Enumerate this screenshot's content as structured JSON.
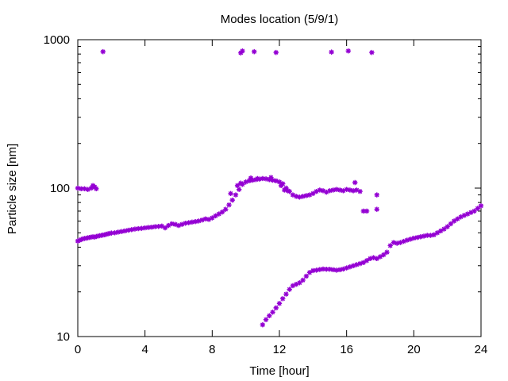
{
  "chart_data": {
    "type": "scatter",
    "title": "Modes location (5/9/1)",
    "xlabel": "Time [hour]",
    "ylabel": "Particle size [nm]",
    "xlim": [
      0,
      24
    ],
    "ylim": [
      10,
      1000
    ],
    "yscale": "log",
    "xticks": [
      0,
      4,
      8,
      12,
      16,
      20,
      24
    ],
    "xtick_labels": [
      "0",
      "4",
      "8",
      "12",
      "16",
      "20",
      "24"
    ],
    "yticks": [
      10,
      100,
      1000
    ],
    "ytick_labels": [
      "10",
      "100",
      "1000"
    ],
    "grid": false,
    "legend": "none",
    "marker": "asterisk",
    "color": "#9400d3",
    "series": [
      {
        "points": [
          [
            0.0,
            44.0
          ],
          [
            0.1,
            44.5
          ],
          [
            0.2,
            45.0
          ],
          [
            0.3,
            45.5
          ],
          [
            0.4,
            45.8
          ],
          [
            0.5,
            46.0
          ],
          [
            0.6,
            46.3
          ],
          [
            0.7,
            46.5
          ],
          [
            0.8,
            46.8
          ],
          [
            0.9,
            47.0
          ],
          [
            1.0,
            46.8
          ],
          [
            1.1,
            47.2
          ],
          [
            1.2,
            47.5
          ],
          [
            1.3,
            47.8
          ],
          [
            1.4,
            48.0
          ],
          [
            1.5,
            48.3
          ],
          [
            1.6,
            48.5
          ],
          [
            1.7,
            48.9
          ],
          [
            1.8,
            49.2
          ],
          [
            1.9,
            49.5
          ],
          [
            2.0,
            49.8
          ],
          [
            2.2,
            50.0
          ],
          [
            2.4,
            50.5
          ],
          [
            2.6,
            51.0
          ],
          [
            2.8,
            51.5
          ],
          [
            3.0,
            52.0
          ],
          [
            3.2,
            52.5
          ],
          [
            3.4,
            53.0
          ],
          [
            3.6,
            53.3
          ],
          [
            3.8,
            53.6
          ],
          [
            4.0,
            54.0
          ],
          [
            4.2,
            54.3
          ],
          [
            4.4,
            54.6
          ],
          [
            4.6,
            55.0
          ],
          [
            4.8,
            55.2
          ],
          [
            5.0,
            55.5
          ],
          [
            5.2,
            54.0
          ],
          [
            5.4,
            56.0
          ],
          [
            5.6,
            57.5
          ],
          [
            5.8,
            57.0
          ],
          [
            6.0,
            56.0
          ],
          [
            6.2,
            57.0
          ],
          [
            6.4,
            58.0
          ],
          [
            6.6,
            58.5
          ],
          [
            6.8,
            59.0
          ],
          [
            7.0,
            59.5
          ],
          [
            7.2,
            60.0
          ],
          [
            7.4,
            61.0
          ],
          [
            7.6,
            62.0
          ],
          [
            7.8,
            61.5
          ],
          [
            8.0,
            63.0
          ],
          [
            8.2,
            65.0
          ],
          [
            8.4,
            67.0
          ],
          [
            8.6,
            69.0
          ],
          [
            8.8,
            72.0
          ],
          [
            9.0,
            77.0
          ],
          [
            9.2,
            83.0
          ],
          [
            9.4,
            90.0
          ],
          [
            9.6,
            98.0
          ],
          [
            9.8,
            106.0
          ],
          [
            10.0,
            110.0
          ],
          [
            10.2,
            112.0
          ],
          [
            10.4,
            113.0
          ],
          [
            10.6,
            114.0
          ],
          [
            10.8,
            115.0
          ],
          [
            11.0,
            116.0
          ],
          [
            11.2,
            115.5
          ],
          [
            11.4,
            114.0
          ],
          [
            11.6,
            113.0
          ],
          [
            11.8,
            112.0
          ],
          [
            12.0,
            110.0
          ],
          [
            12.2,
            107.0
          ],
          [
            12.4,
            100.0
          ],
          [
            12.6,
            95.0
          ],
          [
            12.8,
            90.0
          ],
          [
            13.0,
            88.0
          ],
          [
            13.2,
            87.0
          ],
          [
            13.4,
            88.0
          ],
          [
            13.6,
            89.0
          ],
          [
            13.8,
            90.0
          ],
          [
            14.0,
            92.0
          ],
          [
            14.2,
            95.0
          ],
          [
            14.4,
            97.0
          ],
          [
            14.6,
            96.0
          ],
          [
            14.8,
            94.0
          ],
          [
            15.0,
            96.0
          ],
          [
            15.2,
            97.0
          ],
          [
            15.4,
            98.0
          ],
          [
            15.6,
            97.0
          ],
          [
            15.8,
            96.0
          ],
          [
            16.0,
            98.0
          ],
          [
            16.2,
            97.0
          ],
          [
            16.4,
            96.0
          ],
          [
            16.6,
            97.0
          ],
          [
            16.8,
            95.0
          ],
          [
            17.0,
            70.0
          ],
          [
            17.2,
            70.0
          ],
          [
            17.8,
            72.0
          ],
          [
            0.0,
            100.0
          ],
          [
            0.2,
            99.0
          ],
          [
            0.4,
            99.0
          ],
          [
            0.6,
            98.0
          ],
          [
            0.8,
            100.0
          ],
          [
            0.9,
            104.0
          ],
          [
            1.0,
            102.0
          ],
          [
            1.1,
            99.0
          ],
          [
            9.1,
            92.0
          ],
          [
            9.5,
            104.0
          ],
          [
            9.7,
            108.0
          ],
          [
            10.3,
            117.0
          ],
          [
            10.7,
            116.0
          ],
          [
            11.5,
            118.0
          ],
          [
            12.1,
            104.0
          ],
          [
            12.3,
            97.0
          ],
          [
            12.5,
            96.0
          ],
          [
            16.5,
            109.0
          ],
          [
            17.8,
            90.0
          ],
          [
            1.5,
            830.0
          ],
          [
            9.7,
            815.0
          ],
          [
            9.8,
            840.0
          ],
          [
            10.5,
            830.0
          ],
          [
            11.8,
            820.0
          ],
          [
            15.1,
            825.0
          ],
          [
            16.1,
            840.0
          ],
          [
            17.5,
            820.0
          ],
          [
            11.0,
            12.0
          ],
          [
            11.2,
            13.0
          ],
          [
            11.4,
            13.8
          ],
          [
            11.6,
            14.6
          ],
          [
            11.8,
            15.6
          ],
          [
            12.0,
            16.7
          ],
          [
            12.2,
            18.0
          ],
          [
            12.4,
            19.3
          ],
          [
            12.6,
            20.8
          ],
          [
            12.8,
            22.0
          ],
          [
            13.0,
            22.5
          ],
          [
            13.2,
            23.0
          ],
          [
            13.4,
            24.0
          ],
          [
            13.6,
            25.5
          ],
          [
            13.8,
            27.0
          ],
          [
            14.0,
            27.8
          ],
          [
            14.2,
            28.0
          ],
          [
            14.4,
            28.3
          ],
          [
            14.6,
            28.5
          ],
          [
            14.8,
            28.4
          ],
          [
            15.0,
            28.4
          ],
          [
            15.2,
            28.2
          ],
          [
            15.4,
            28.0
          ],
          [
            15.6,
            28.2
          ],
          [
            15.8,
            28.5
          ],
          [
            16.0,
            29.0
          ],
          [
            16.2,
            29.5
          ],
          [
            16.4,
            30.0
          ],
          [
            16.6,
            30.5
          ],
          [
            16.8,
            31.0
          ],
          [
            17.0,
            31.5
          ],
          [
            17.2,
            32.5
          ],
          [
            17.4,
            33.5
          ],
          [
            17.6,
            34.0
          ],
          [
            17.8,
            33.5
          ],
          [
            18.0,
            34.5
          ],
          [
            18.2,
            35.5
          ],
          [
            18.4,
            37.0
          ],
          [
            18.6,
            41.0
          ],
          [
            18.8,
            43.0
          ],
          [
            19.0,
            42.5
          ],
          [
            19.2,
            43.0
          ],
          [
            19.4,
            43.8
          ],
          [
            19.6,
            44.6
          ],
          [
            19.8,
            45.3
          ],
          [
            20.0,
            46.0
          ],
          [
            20.2,
            46.5
          ],
          [
            20.4,
            47.0
          ],
          [
            20.6,
            47.5
          ],
          [
            20.8,
            48.0
          ],
          [
            21.0,
            48.0
          ],
          [
            21.2,
            48.5
          ],
          [
            21.4,
            50.0
          ],
          [
            21.6,
            51.5
          ],
          [
            21.8,
            53.0
          ],
          [
            22.0,
            55.0
          ],
          [
            22.2,
            57.5
          ],
          [
            22.4,
            60.0
          ],
          [
            22.6,
            62.0
          ],
          [
            22.8,
            64.0
          ],
          [
            23.0,
            65.5
          ],
          [
            23.2,
            67.0
          ],
          [
            23.4,
            68.5
          ],
          [
            23.6,
            70.0
          ],
          [
            23.8,
            73.0
          ],
          [
            24.0,
            76.0
          ]
        ]
      }
    ]
  }
}
